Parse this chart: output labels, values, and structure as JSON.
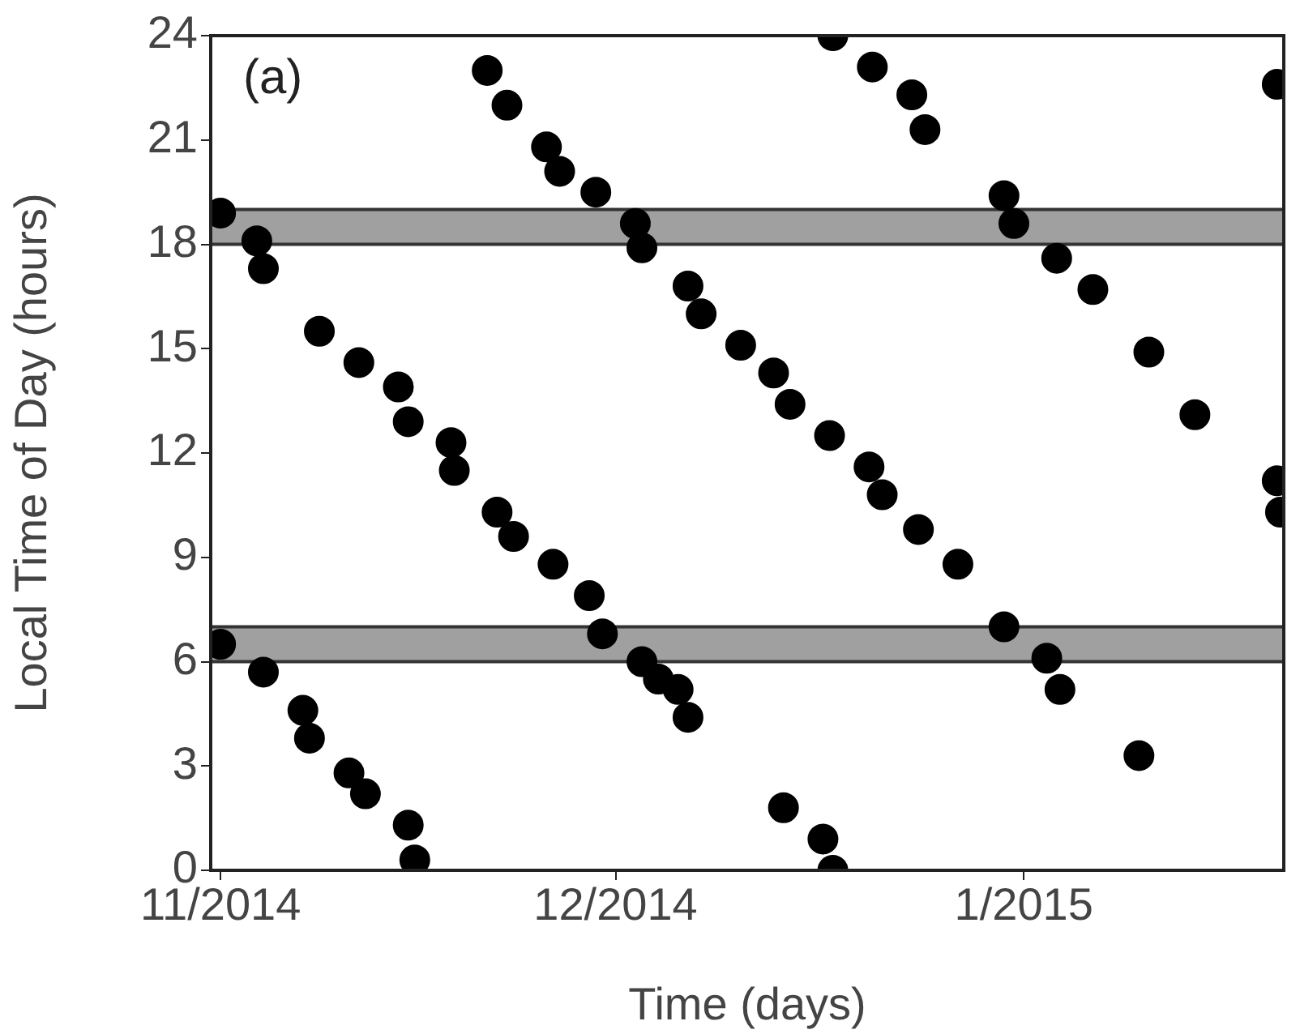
{
  "chart_data": {
    "type": "scatter",
    "xlabel": "Time (days)",
    "ylabel": "Local Time of Day (hours)",
    "annotations": [
      "(a)"
    ],
    "xlim": [
      "2014-10-31T06:00",
      "2015-01-20T18:00"
    ],
    "xticks": [
      {
        "value": "2014-11-01",
        "label": "11/2014"
      },
      {
        "value": "2014-12-01",
        "label": "12/2014"
      },
      {
        "value": "2015-01-01",
        "label": "1/2015"
      }
    ],
    "ylim": [
      0,
      24
    ],
    "yticks": [
      0,
      3,
      6,
      9,
      12,
      15,
      18,
      21,
      24
    ],
    "grid": false,
    "legend": false,
    "marker": "circle",
    "bands": [
      {
        "axis": "y",
        "from": 18,
        "to": 19,
        "color": "#a0a0a0"
      },
      {
        "axis": "y",
        "from": 6,
        "to": 7,
        "color": "#a0a0a0"
      }
    ],
    "series": [
      {
        "color": "#000000",
        "x": [
          "2014-11-01T00:00",
          "2014-11-03T18:00",
          "2014-11-04T06:00",
          "2014-11-08T12:00",
          "2014-11-11T12:00",
          "2014-11-14T12:00",
          "2014-11-15T06:00",
          "2014-11-18T12:00",
          "2014-11-18T18:00",
          "2014-11-22T00:00",
          "2014-11-23T06:00",
          "2014-11-26T06:00",
          "2014-11-29T00:00",
          "2014-11-30T00:00",
          "2014-12-03T00:00",
          "2014-12-04T06:00",
          "2014-12-05T18:00",
          "2014-12-06T12:00",
          "2014-11-21T06:00",
          "2014-11-22T18:00",
          "2014-11-25T18:00",
          "2014-11-26T18:00",
          "2014-11-29T12:00",
          "2014-12-02T12:00",
          "2014-12-03T00:00",
          "2014-12-06T12:00",
          "2014-12-07T12:00",
          "2014-12-10T12:00",
          "2014-12-13T00:00",
          "2014-12-14T06:00",
          "2014-12-17T06:00",
          "2014-12-20T06:00",
          "2014-12-21T06:00",
          "2014-12-24T00:00",
          "2014-12-27T00:00",
          "2014-12-30T12:00",
          "2015-01-02T18:00",
          "2015-01-03T18:00",
          "2015-01-09T18:00",
          "2014-12-13T18:00",
          "2014-12-16T18:00",
          "2014-12-17T12:00",
          "2014-12-17T12:00",
          "2014-12-20T12:00",
          "2014-12-23T12:00",
          "2014-12-24T12:00",
          "2014-12-30T12:00",
          "2014-12-31T06:00",
          "2015-01-03T12:00",
          "2015-01-06T06:00",
          "2015-01-10T12:00",
          "2015-01-14T00:00",
          "2015-01-20T06:00",
          "2015-01-20T06:00",
          "2015-01-20T12:00",
          "2014-11-01T00:00",
          "2014-11-04T06:00",
          "2014-11-07T06:00",
          "2014-11-07T18:00",
          "2014-11-10T18:00",
          "2014-11-12T00:00",
          "2014-11-15T06:00",
          "2014-11-15T18:00"
        ],
        "values": [
          18.9,
          18.1,
          17.3,
          15.5,
          14.6,
          13.9,
          12.9,
          12.3,
          11.5,
          10.3,
          9.6,
          8.8,
          7.9,
          6.8,
          6.0,
          5.5,
          5.2,
          4.4,
          23.0,
          22.0,
          20.8,
          20.1,
          19.5,
          18.6,
          17.9,
          16.8,
          16.0,
          15.1,
          14.3,
          13.4,
          12.5,
          11.6,
          10.8,
          9.8,
          8.8,
          7.0,
          6.1,
          5.2,
          3.3,
          1.8,
          0.9,
          0.0,
          24.0,
          23.1,
          22.3,
          21.3,
          19.4,
          18.6,
          17.6,
          16.7,
          14.9,
          13.1,
          22.6,
          11.2,
          10.3,
          6.5,
          5.7,
          4.6,
          3.8,
          2.8,
          2.2,
          1.3,
          0.3
        ]
      }
    ]
  }
}
